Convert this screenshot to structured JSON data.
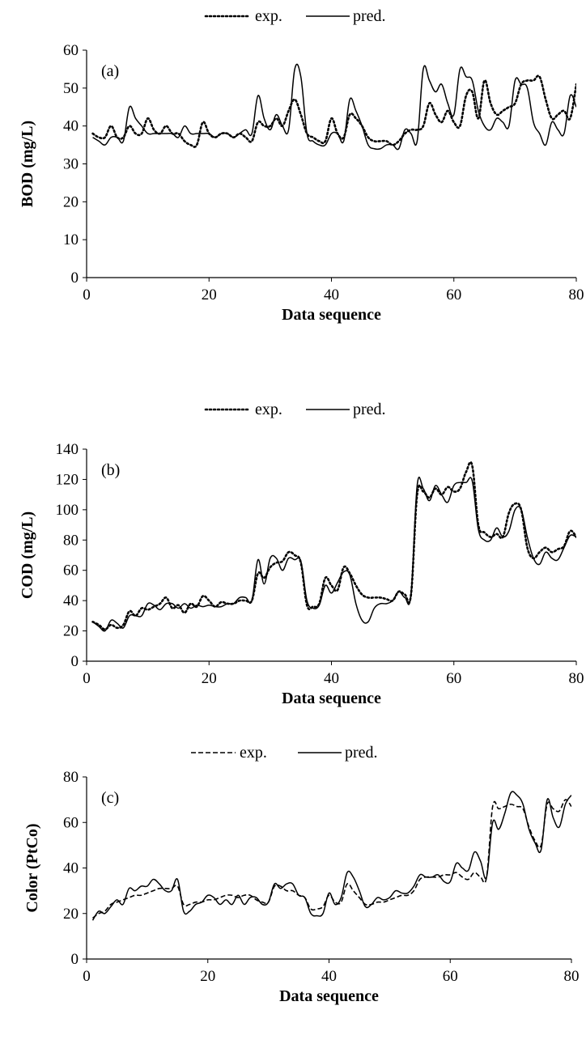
{
  "chart_data": [
    {
      "type": "line",
      "panel_label": "(a)",
      "xlabel": "Data sequence",
      "ylabel": "BOD (mg/L)",
      "xlim": [
        0,
        80
      ],
      "ylim": [
        0,
        60
      ],
      "xticks": [
        0,
        20,
        40,
        60,
        80
      ],
      "yticks": [
        0,
        10,
        20,
        30,
        40,
        50,
        60
      ],
      "grid": false,
      "legend_position": "top-center",
      "x": [
        1,
        2,
        3,
        4,
        5,
        6,
        7,
        8,
        9,
        10,
        11,
        12,
        13,
        14,
        15,
        16,
        17,
        18,
        19,
        20,
        21,
        22,
        23,
        24,
        25,
        26,
        27,
        28,
        29,
        30,
        31,
        32,
        33,
        34,
        35,
        36,
        37,
        38,
        39,
        40,
        41,
        42,
        43,
        44,
        45,
        46,
        47,
        48,
        49,
        50,
        51,
        52,
        53,
        54,
        55,
        56,
        57,
        58,
        59,
        60,
        61,
        62,
        63,
        64,
        65,
        66,
        67,
        68,
        69,
        70,
        71,
        72,
        73,
        74,
        75,
        76,
        77,
        78,
        79,
        80
      ],
      "series": [
        {
          "name": "exp.",
          "style": "dotted",
          "color": "#000000",
          "values": [
            38,
            37,
            37,
            40,
            37,
            37,
            40,
            38,
            38,
            42,
            39,
            38,
            40,
            38,
            38,
            36,
            35,
            35,
            41,
            38,
            37,
            38,
            38,
            37,
            38,
            37,
            36,
            41,
            40,
            40,
            42,
            40,
            44,
            47,
            43,
            38,
            37,
            36,
            36,
            42,
            38,
            37,
            43,
            42,
            40,
            37,
            36,
            36,
            36,
            35,
            36,
            38,
            39,
            39,
            40,
            46,
            43,
            41,
            44,
            41,
            40,
            48,
            49,
            42,
            52,
            46,
            43,
            44,
            45,
            46,
            51,
            52,
            52,
            53,
            47,
            42,
            43,
            44,
            42,
            51
          ]
        },
        {
          "name": "pred.",
          "style": "solid",
          "color": "#000000",
          "values": [
            37,
            36,
            35,
            37,
            37,
            36,
            45,
            42,
            40,
            38,
            38,
            38,
            38,
            38,
            37,
            40,
            38,
            38,
            38,
            38,
            37,
            38,
            38,
            37,
            38,
            39,
            38,
            48,
            42,
            39,
            43,
            40,
            39,
            55,
            53,
            38,
            36,
            35,
            35,
            38,
            38,
            36,
            47,
            44,
            40,
            35,
            34,
            34,
            35,
            35,
            34,
            39,
            38,
            36,
            55,
            52,
            49,
            51,
            46,
            43,
            55,
            53,
            52,
            44,
            40,
            39,
            42,
            41,
            40,
            52,
            51,
            50,
            41,
            38,
            35,
            41,
            39,
            38,
            48,
            45
          ]
        }
      ]
    },
    {
      "type": "line",
      "panel_label": "(b)",
      "xlabel": "Data sequence",
      "ylabel": "COD (mg/L)",
      "xlim": [
        0,
        80
      ],
      "ylim": [
        0,
        140
      ],
      "xticks": [
        0,
        20,
        40,
        60,
        80
      ],
      "yticks": [
        0,
        20,
        40,
        60,
        80,
        100,
        120,
        140
      ],
      "grid": false,
      "legend_position": "top-center",
      "x": [
        1,
        2,
        3,
        4,
        5,
        6,
        7,
        8,
        9,
        10,
        11,
        12,
        13,
        14,
        15,
        16,
        17,
        18,
        19,
        20,
        21,
        22,
        23,
        24,
        25,
        26,
        27,
        28,
        29,
        30,
        31,
        32,
        33,
        34,
        35,
        36,
        37,
        38,
        39,
        40,
        41,
        42,
        43,
        44,
        45,
        46,
        47,
        48,
        49,
        50,
        51,
        52,
        53,
        54,
        55,
        56,
        57,
        58,
        59,
        60,
        61,
        62,
        63,
        64,
        65,
        66,
        67,
        68,
        69,
        70,
        71,
        72,
        73,
        74,
        75,
        76,
        77,
        78,
        79,
        80
      ],
      "series": [
        {
          "name": "exp.",
          "style": "dotted",
          "color": "#000000",
          "values": [
            26,
            24,
            21,
            24,
            22,
            24,
            33,
            30,
            35,
            34,
            36,
            38,
            42,
            35,
            37,
            32,
            38,
            36,
            43,
            40,
            36,
            39,
            38,
            38,
            40,
            40,
            40,
            58,
            55,
            62,
            65,
            66,
            72,
            70,
            65,
            37,
            36,
            38,
            55,
            50,
            47,
            62,
            58,
            50,
            44,
            42,
            42,
            42,
            41,
            40,
            46,
            44,
            44,
            110,
            112,
            108,
            114,
            110,
            115,
            112,
            114,
            125,
            129,
            90,
            85,
            82,
            84,
            82,
            98,
            104,
            100,
            75,
            68,
            72,
            75,
            72,
            74,
            76,
            86,
            82
          ]
        },
        {
          "name": "pred.",
          "style": "solid",
          "color": "#000000",
          "values": [
            26,
            23,
            20,
            27,
            25,
            22,
            30,
            30,
            30,
            38,
            37,
            34,
            38,
            38,
            35,
            38,
            35,
            37,
            36,
            37,
            36,
            36,
            38,
            38,
            42,
            42,
            40,
            67,
            51,
            68,
            68,
            60,
            68,
            67,
            66,
            40,
            35,
            37,
            50,
            45,
            52,
            59,
            57,
            38,
            27,
            26,
            35,
            38,
            38,
            40,
            46,
            42,
            44,
            116,
            114,
            106,
            116,
            110,
            105,
            116,
            118,
            118,
            119,
            87,
            80,
            80,
            88,
            82,
            86,
            100,
            100,
            82,
            68,
            64,
            72,
            68,
            67,
            75,
            83,
            82
          ]
        }
      ]
    },
    {
      "type": "line",
      "panel_label": "(c)",
      "xlabel": "Data sequence",
      "ylabel": "Color (PtCo)",
      "xlim": [
        0,
        80
      ],
      "ylim": [
        0,
        80
      ],
      "xticks": [
        0,
        20,
        40,
        60,
        80
      ],
      "yticks": [
        0,
        20,
        40,
        60,
        80
      ],
      "grid": false,
      "legend_position": "top-center",
      "x": [
        1,
        2,
        3,
        4,
        5,
        6,
        7,
        8,
        9,
        10,
        11,
        12,
        13,
        14,
        15,
        16,
        17,
        18,
        19,
        20,
        21,
        22,
        23,
        24,
        25,
        26,
        27,
        28,
        29,
        30,
        31,
        32,
        33,
        34,
        35,
        36,
        37,
        38,
        39,
        40,
        41,
        42,
        43,
        44,
        45,
        46,
        47,
        48,
        49,
        50,
        51,
        52,
        53,
        54,
        55,
        56,
        57,
        58,
        59,
        60,
        61,
        62,
        63,
        64,
        65,
        66,
        67,
        68,
        69,
        70,
        71,
        72,
        73,
        74,
        75,
        76,
        77,
        78,
        79,
        80
      ],
      "series": [
        {
          "name": "exp.",
          "style": "dashed",
          "color": "#000000",
          "values": [
            18,
            20,
            21,
            24,
            25,
            26,
            27,
            28,
            28,
            29,
            30,
            31,
            31,
            31,
            32,
            24,
            24,
            25,
            25,
            26,
            26,
            27,
            28,
            28,
            27,
            28,
            28,
            26,
            25,
            25,
            32,
            32,
            30,
            30,
            28,
            27,
            22,
            22,
            23,
            28,
            25,
            25,
            33,
            30,
            27,
            24,
            24,
            25,
            25,
            26,
            27,
            28,
            28,
            30,
            35,
            36,
            36,
            36,
            37,
            37,
            38,
            36,
            35,
            38,
            36,
            36,
            67,
            66,
            67,
            68,
            67,
            66,
            58,
            52,
            50,
            68,
            66,
            65,
            70,
            67
          ]
        },
        {
          "name": "pred.",
          "style": "solid",
          "color": "#000000",
          "values": [
            17,
            21,
            20,
            23,
            26,
            24,
            31,
            30,
            32,
            32,
            35,
            33,
            30,
            30,
            35,
            21,
            21,
            24,
            25,
            28,
            27,
            24,
            26,
            24,
            28,
            24,
            27,
            27,
            24,
            25,
            33,
            31,
            33,
            33,
            28,
            27,
            20,
            19,
            20,
            29,
            24,
            27,
            38,
            36,
            30,
            23,
            24,
            27,
            26,
            27,
            30,
            29,
            29,
            32,
            37,
            36,
            36,
            37,
            34,
            34,
            42,
            40,
            39,
            47,
            43,
            36,
            60,
            57,
            64,
            73,
            72,
            68,
            57,
            51,
            48,
            70,
            62,
            58,
            68,
            72
          ]
        }
      ]
    }
  ]
}
